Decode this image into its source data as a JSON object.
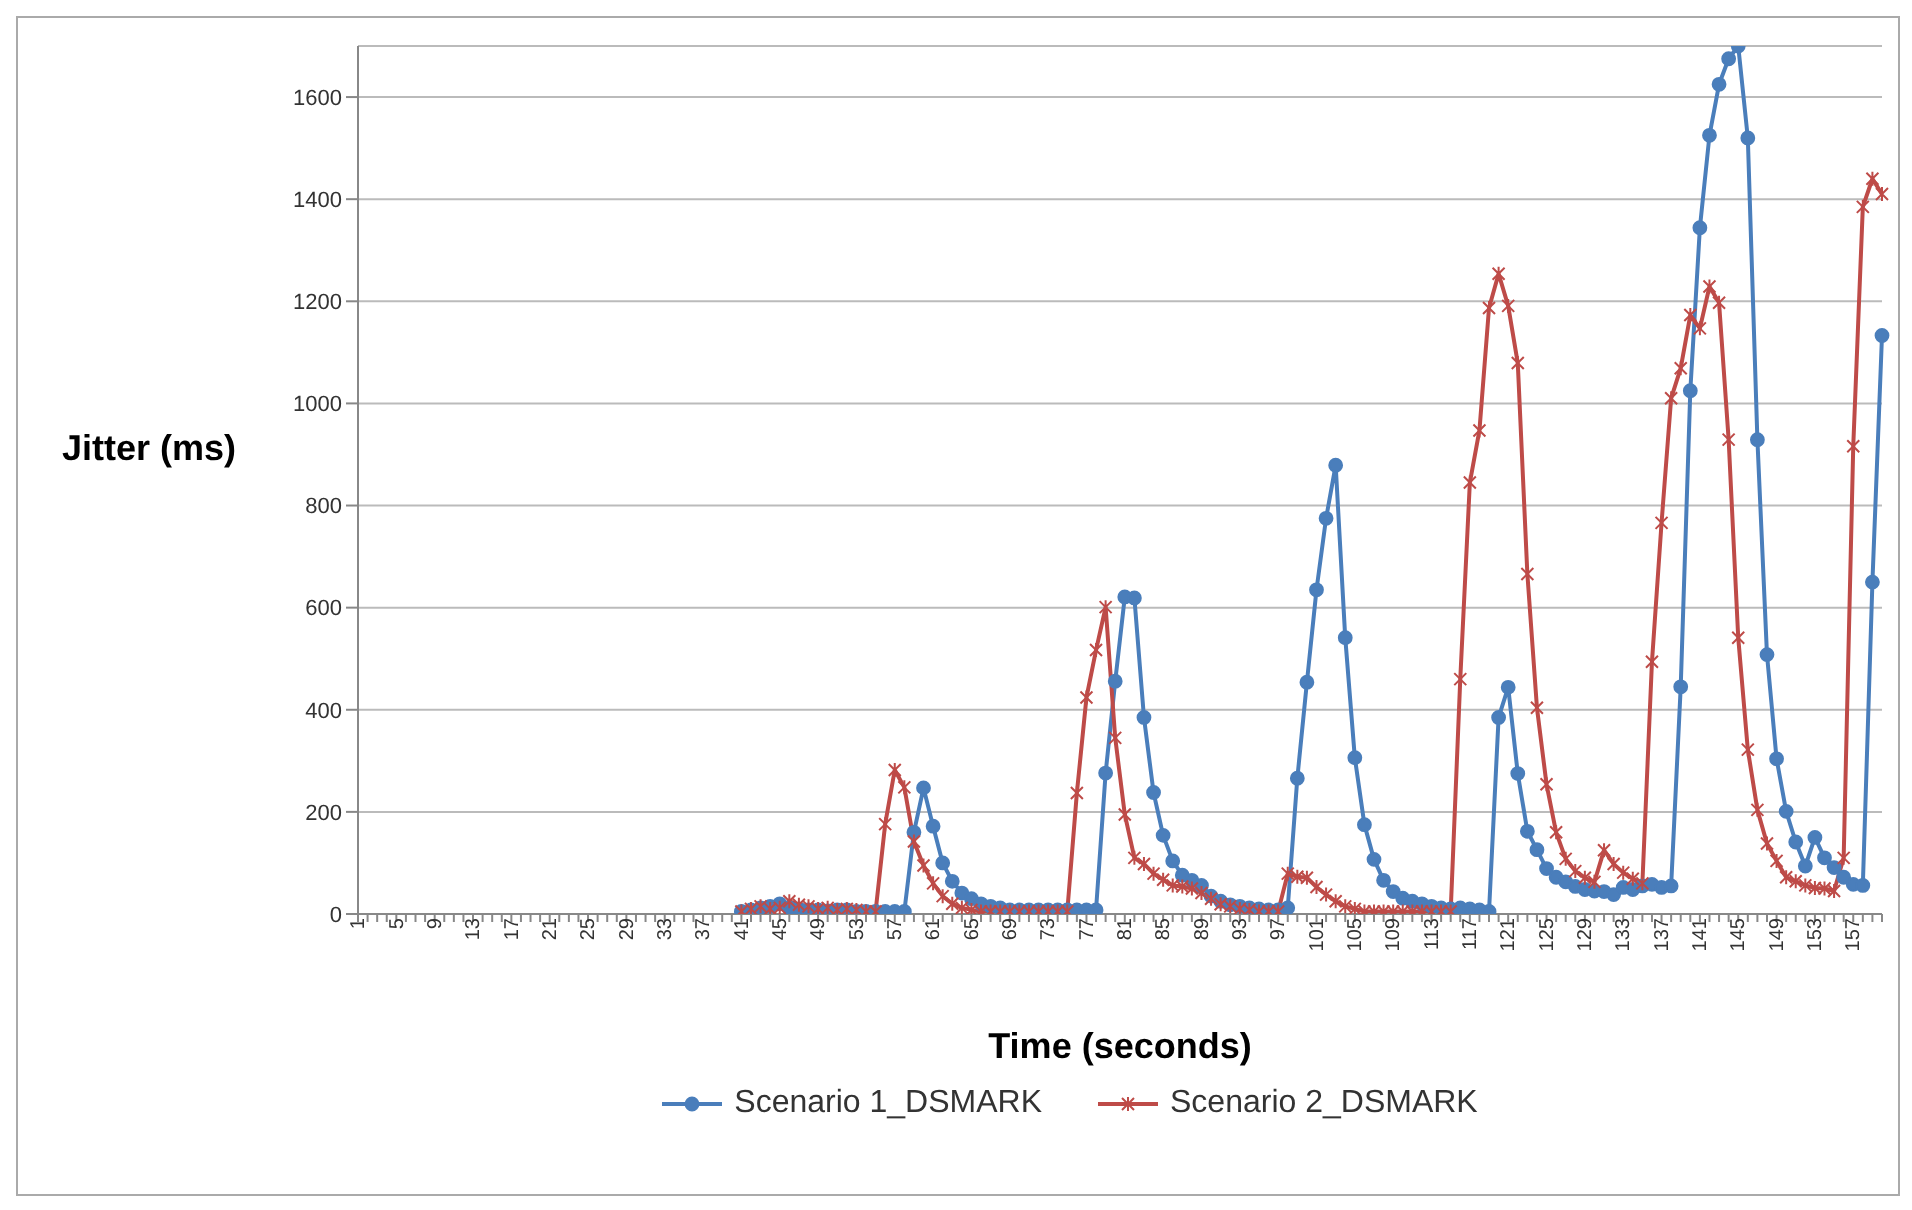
{
  "chart_data": {
    "type": "line",
    "xlabel": "Time (seconds)",
    "ylabel": "Jitter (ms)",
    "categories": [
      "1",
      null,
      null,
      null,
      "5",
      null,
      null,
      null,
      "9",
      null,
      null,
      null,
      "13",
      null,
      null,
      null,
      "17",
      null,
      null,
      null,
      "21",
      null,
      null,
      null,
      "25",
      null,
      null,
      null,
      "29",
      null,
      null,
      null,
      "33",
      null,
      null,
      null,
      "37",
      null,
      null,
      null,
      "41",
      null,
      null,
      null,
      "45",
      null,
      null,
      null,
      "49",
      null,
      null,
      null,
      "53",
      null,
      null,
      null,
      "57",
      null,
      null,
      null,
      "61",
      null,
      null,
      null,
      "65",
      null,
      null,
      null,
      "69",
      null,
      null,
      null,
      "73",
      null,
      null,
      null,
      "77",
      null,
      null,
      null,
      "81",
      null,
      null,
      null,
      "85",
      null,
      null,
      null,
      "89",
      null,
      null,
      null,
      "93",
      null,
      null,
      null,
      "97",
      null,
      null,
      null,
      "101",
      null,
      null,
      null,
      "105",
      null,
      null,
      null,
      "109",
      null,
      null,
      null,
      "113",
      null,
      null,
      null,
      "117",
      null,
      null,
      null,
      "121",
      null,
      null,
      null,
      "125",
      null,
      null,
      null,
      "129",
      null,
      null,
      null,
      "133",
      null,
      null,
      null,
      "137",
      null,
      null,
      null,
      "141",
      null,
      null,
      null,
      "145",
      null,
      null,
      null,
      "149",
      null,
      null,
      null,
      "153",
      null,
      null,
      null,
      "157",
      null,
      null,
      null
    ],
    "series": [
      {
        "name": "Scenario 1_DSMARK",
        "color": "#4a7ebb",
        "marker": "circle",
        "values": [
          null,
          null,
          null,
          null,
          null,
          null,
          null,
          null,
          null,
          null,
          null,
          null,
          null,
          null,
          null,
          null,
          null,
          null,
          null,
          null,
          null,
          null,
          null,
          null,
          null,
          null,
          null,
          null,
          null,
          null,
          null,
          null,
          null,
          null,
          null,
          null,
          null,
          null,
          null,
          null,
          5,
          8,
          12,
          15,
          20,
          12,
          10,
          8,
          8,
          6,
          8,
          8,
          5,
          5,
          5,
          5,
          5,
          5,
          160,
          247,
          172,
          100,
          64,
          41,
          30,
          20,
          15,
          12,
          8,
          8,
          8,
          8,
          8,
          8,
          8,
          8,
          8,
          8,
          276,
          456,
          621,
          619,
          385,
          238,
          154,
          104,
          76,
          66,
          56,
          35,
          25,
          18,
          15,
          12,
          10,
          8,
          8,
          12,
          266,
          454,
          635,
          775,
          879,
          541,
          306,
          175,
          107,
          66,
          44,
          31,
          25,
          20,
          15,
          12,
          10,
          12,
          10,
          8,
          5,
          385,
          444,
          275,
          162,
          126,
          89,
          72,
          63,
          54,
          48,
          45,
          44,
          38,
          52,
          48,
          55,
          58,
          52,
          55,
          445,
          1025,
          1344,
          1525,
          1625,
          1675,
          1700,
          1520,
          929,
          508,
          304,
          201,
          141,
          94,
          150,
          110,
          91,
          72,
          58,
          56,
          650,
          1133
        ]
      },
      {
        "name": "Scenario 2_DSMARK",
        "color": "#be4b48",
        "marker": "cross",
        "values": [
          null,
          null,
          null,
          null,
          null,
          null,
          null,
          null,
          null,
          null,
          null,
          null,
          null,
          null,
          null,
          null,
          null,
          null,
          null,
          null,
          null,
          null,
          null,
          null,
          null,
          null,
          null,
          null,
          null,
          null,
          null,
          null,
          null,
          null,
          null,
          null,
          null,
          null,
          null,
          null,
          5,
          10,
          15,
          10,
          12,
          25,
          18,
          15,
          10,
          12,
          8,
          10,
          8,
          5,
          5,
          176,
          282,
          248,
          142,
          95,
          60,
          35,
          20,
          12,
          8,
          5,
          5,
          5,
          5,
          5,
          5,
          5,
          5,
          5,
          5,
          237,
          424,
          517,
          601,
          345,
          195,
          110,
          98,
          79,
          67,
          56,
          54,
          50,
          41,
          30,
          19,
          15,
          10,
          8,
          5,
          5,
          5,
          79,
          73,
          71,
          53,
          38,
          25,
          15,
          10,
          5,
          5,
          5,
          5,
          5,
          5,
          5,
          5,
          5,
          5,
          460,
          845,
          947,
          1187,
          1254,
          1191,
          1079,
          666,
          404,
          254,
          160,
          108,
          84,
          71,
          63,
          125,
          98,
          81,
          69,
          60,
          494,
          766,
          1010,
          1069,
          1173,
          1147,
          1229,
          1197,
          929,
          541,
          322,
          204,
          138,
          104,
          72,
          64,
          56,
          51,
          50,
          45,
          110,
          916,
          1385,
          1440,
          1410
        ]
      }
    ],
    "ylim": [
      0,
      1700
    ],
    "yticks": [
      0,
      200,
      400,
      600,
      800,
      1000,
      1200,
      1400,
      1600
    ],
    "grid": "y",
    "legend": "bottom"
  }
}
